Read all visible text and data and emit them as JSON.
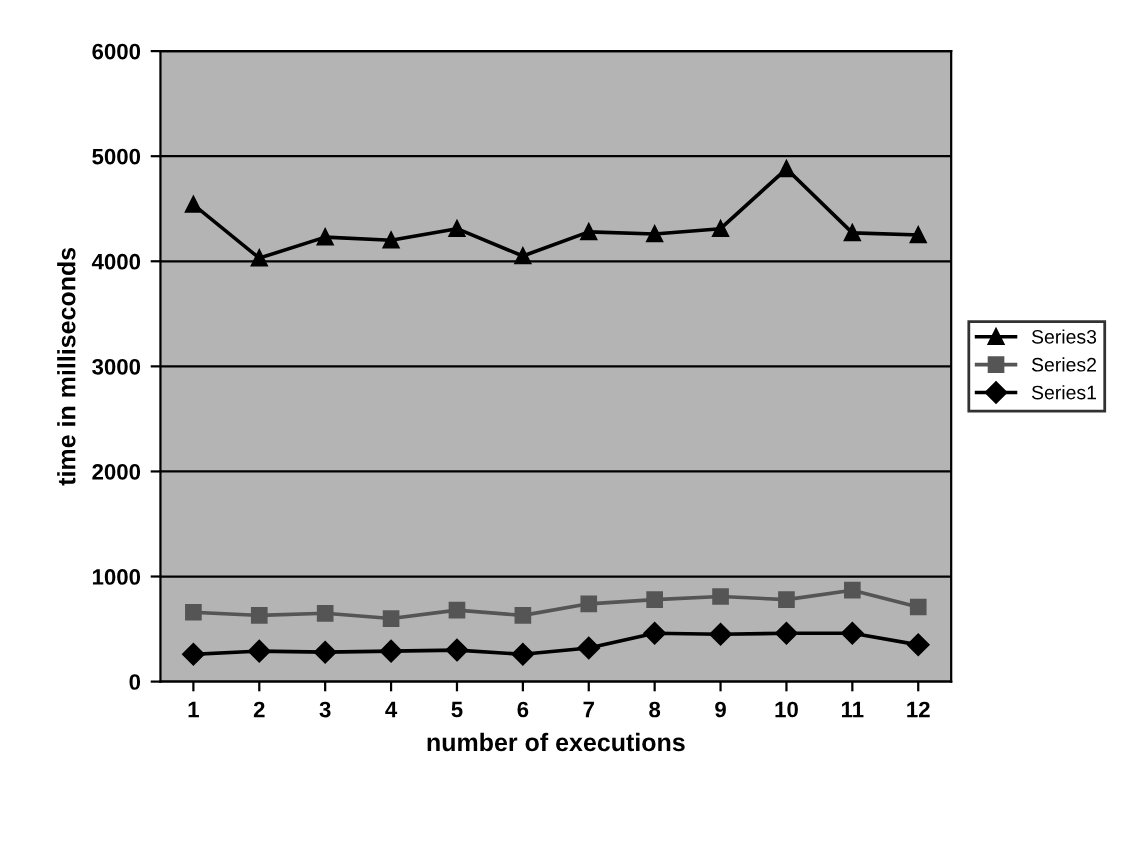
{
  "chart_data": {
    "type": "line",
    "xlabel": "number of executions",
    "ylabel": "time in milliseconds",
    "categories": [
      "1",
      "2",
      "3",
      "4",
      "5",
      "6",
      "7",
      "8",
      "9",
      "10",
      "11",
      "12"
    ],
    "series": [
      {
        "name": "Series3",
        "color": "#000000",
        "marker": "triangle",
        "values": [
          4540,
          4030,
          4230,
          4200,
          4310,
          4050,
          4280,
          4260,
          4310,
          4880,
          4270,
          4250
        ]
      },
      {
        "name": "Series2",
        "color": "#555555",
        "marker": "square",
        "values": [
          660,
          630,
          650,
          600,
          680,
          630,
          740,
          780,
          810,
          780,
          870,
          710
        ]
      },
      {
        "name": "Series1",
        "color": "#000000",
        "marker": "diamond",
        "values": [
          260,
          290,
          280,
          290,
          300,
          260,
          320,
          460,
          450,
          460,
          460,
          350
        ]
      }
    ],
    "ylim": [
      0,
      6000
    ],
    "yticks": [
      0,
      1000,
      2000,
      3000,
      4000,
      5000,
      6000
    ],
    "grid": "y",
    "legend": "right"
  }
}
